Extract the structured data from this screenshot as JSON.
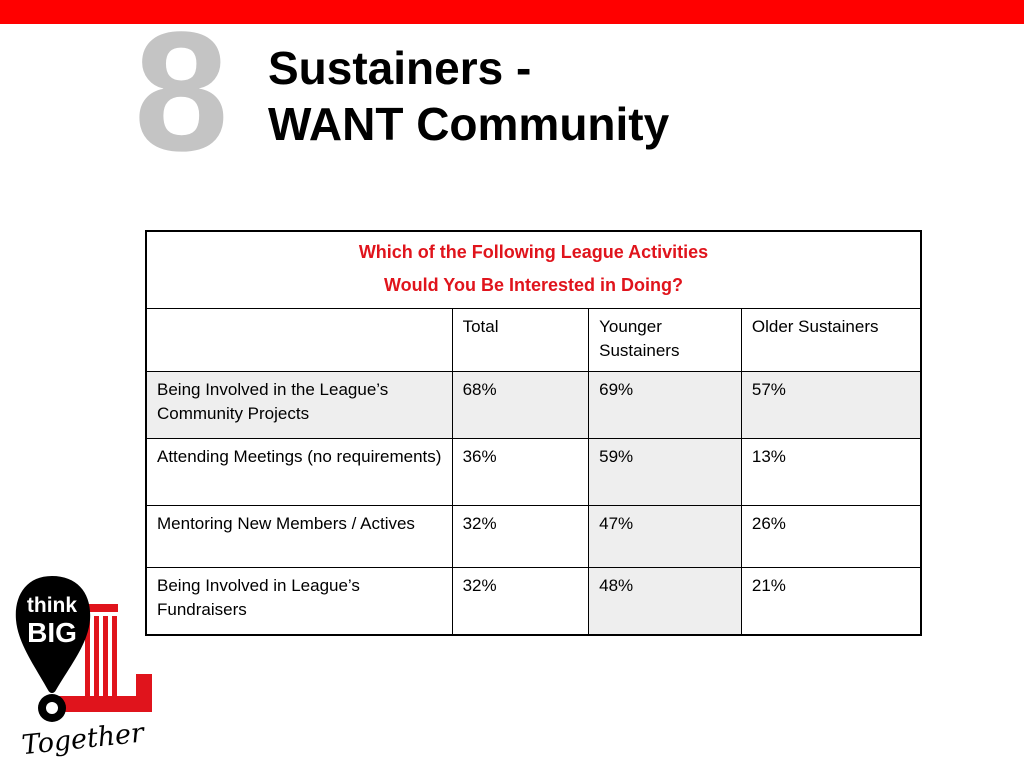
{
  "slide": {
    "number": "8",
    "title_line1": "Sustainers -",
    "title_line2": "WANT Community"
  },
  "table": {
    "question_line1": "Which of the Following League Activities",
    "question_line2": "Would You Be Interested in Doing?",
    "columns": [
      "",
      "Total",
      "Younger Sustainers",
      "Older Sustainers"
    ],
    "rows": [
      {
        "activity": "Being Involved in the League’s Community Projects",
        "total": "68%",
        "younger": "69%",
        "older": "57%"
      },
      {
        "activity": "Attending Meetings (no requirements)",
        "total": "36%",
        "younger": "59%",
        "older": "13%"
      },
      {
        "activity": "Mentoring New Members / Actives",
        "total": "32%",
        "younger": "47%",
        "older": "26%"
      },
      {
        "activity": "Being Involved in League’s Fundraisers",
        "total": "32%",
        "younger": "48%",
        "older": "21%"
      }
    ]
  },
  "logo": {
    "text_line1": "think",
    "text_line2": "BIG",
    "script_text": "Together",
    "colors": {
      "black": "#000000",
      "red": "#e0141c",
      "white": "#ffffff"
    }
  },
  "colors": {
    "top_bar": "#ff0000",
    "number": "#c4c4c4",
    "question_text": "#e0141c",
    "shaded_cell": "#eeeeee"
  }
}
